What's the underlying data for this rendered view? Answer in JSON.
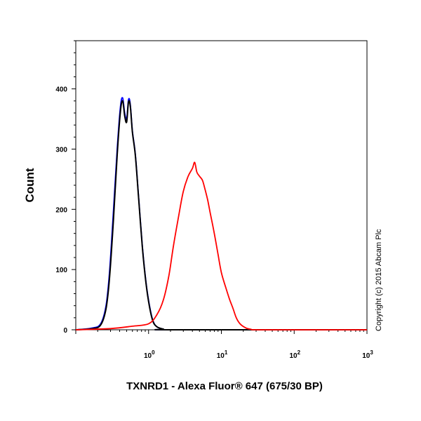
{
  "chart_data": {
    "type": "line",
    "title": "",
    "xlabel": "TXNRD1 - Alexa Fluor® 647 (675/30 BP)",
    "ylabel": "Count",
    "xscale": "log",
    "xlim": [
      0.1,
      1000
    ],
    "ylim": [
      0,
      480
    ],
    "x_ticks": [
      1,
      10,
      100,
      1000
    ],
    "x_tick_labels": [
      {
        "base": "10",
        "exp": "0"
      },
      {
        "base": "10",
        "exp": "1"
      },
      {
        "base": "10",
        "exp": "2"
      },
      {
        "base": "10",
        "exp": "3"
      }
    ],
    "y_ticks": [
      0,
      100,
      200,
      300,
      400
    ],
    "y_tick_labels": [
      "0",
      "100",
      "200",
      "300",
      "400"
    ],
    "grid": false,
    "legend": "none",
    "annotation": "Copyright (c) 2015 Abcam Plc",
    "series": [
      {
        "color": "#0000ff",
        "x": [
          0.1,
          0.17,
          0.22,
          0.26,
          0.29,
          0.33,
          0.37,
          0.41,
          0.44,
          0.47,
          0.5,
          0.53,
          0.56,
          0.6,
          0.66,
          0.73,
          0.82,
          0.92,
          1.03,
          1.15,
          1.3,
          1.6,
          2.1,
          1000
        ],
        "y": [
          0,
          3,
          10,
          40,
          95,
          200,
          300,
          370,
          385,
          360,
          350,
          382,
          375,
          330,
          290,
          220,
          140,
          80,
          40,
          15,
          5,
          1,
          0,
          0
        ]
      },
      {
        "color": "#000000",
        "x": [
          0.1,
          0.17,
          0.22,
          0.26,
          0.29,
          0.33,
          0.37,
          0.41,
          0.44,
          0.47,
          0.5,
          0.53,
          0.56,
          0.6,
          0.66,
          0.73,
          0.82,
          0.92,
          1.03,
          1.15,
          1.3,
          1.6,
          2.1,
          1000
        ],
        "y": [
          0,
          2,
          8,
          35,
          85,
          185,
          290,
          362,
          380,
          355,
          345,
          378,
          372,
          328,
          288,
          218,
          138,
          78,
          38,
          14,
          5,
          1,
          0,
          0
        ]
      },
      {
        "color": "#ff0000",
        "x": [
          0.1,
          0.3,
          0.6,
          1.0,
          1.3,
          1.6,
          1.9,
          2.2,
          2.6,
          3.0,
          3.5,
          4.0,
          4.3,
          4.6,
          5.0,
          5.5,
          6.0,
          6.5,
          7.0,
          8.0,
          9.0,
          10.0,
          11.5,
          13.0,
          14.5,
          16.0,
          18.0,
          21.0,
          25.0,
          40.0,
          1000
        ],
        "y": [
          0,
          2,
          6,
          10,
          25,
          50,
          90,
          140,
          190,
          230,
          255,
          268,
          278,
          262,
          255,
          248,
          232,
          215,
          195,
          160,
          125,
          95,
          70,
          50,
          35,
          20,
          10,
          4,
          1,
          0,
          0
        ]
      }
    ]
  }
}
